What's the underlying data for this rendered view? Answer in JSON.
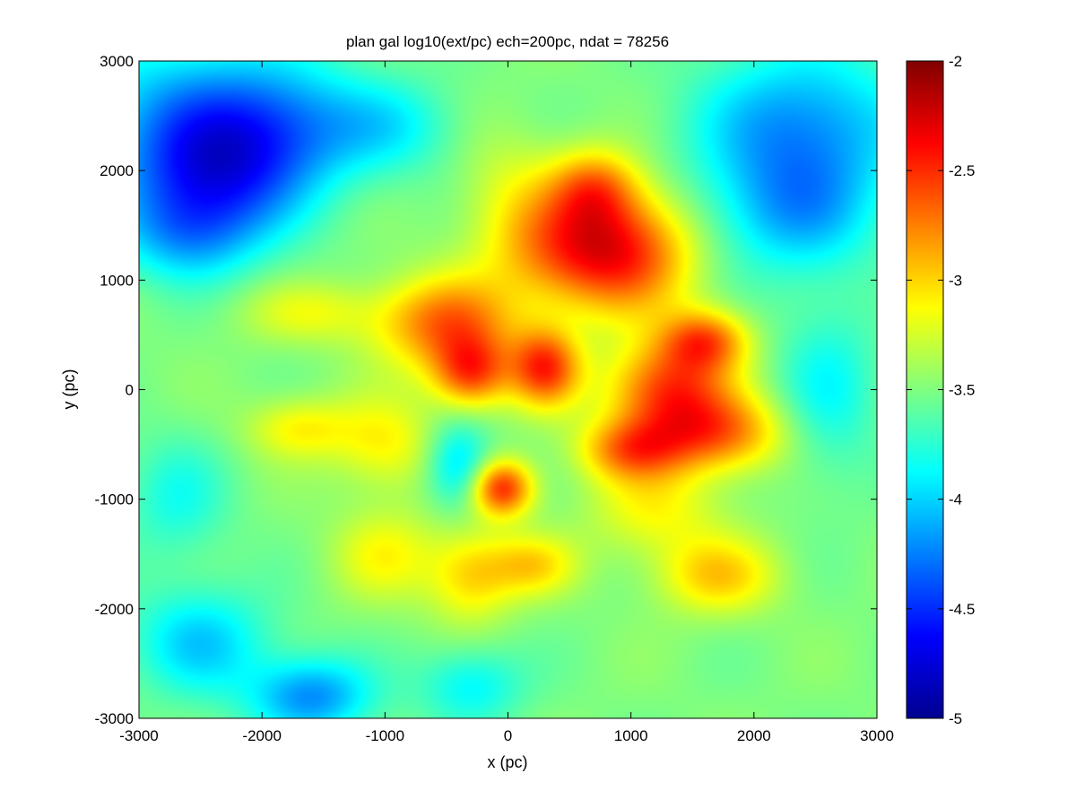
{
  "chart_data": {
    "type": "heatmap",
    "title": "plan gal log10(ext/pc) ech=200pc, ndat = 78256",
    "xlabel": "x (pc)",
    "ylabel": "y (pc)",
    "xlim": [
      -3000,
      3000
    ],
    "ylim": [
      -3000,
      3000
    ],
    "x_ticks": [
      "-3000",
      "-2000",
      "-1000",
      "0",
      "1000",
      "2000",
      "3000"
    ],
    "y_ticks": [
      "3000",
      "2000",
      "1000",
      "0",
      "-1000",
      "-2000",
      "-3000"
    ],
    "colorbar": {
      "range": [
        -5,
        -2
      ],
      "colormap": "jet",
      "ticks": [
        "-2",
        "-2.5",
        "-3",
        "-3.5",
        "-4",
        "-4.5",
        "-5"
      ]
    },
    "grid": false,
    "background_value": -3.5,
    "features": [
      {
        "x": -2600,
        "y": 2500,
        "value": -4.1,
        "sx": 700,
        "sy": 500
      },
      {
        "x": -2400,
        "y": 1900,
        "value": -4.25,
        "sx": 500,
        "sy": 400
      },
      {
        "x": -2600,
        "y": 1400,
        "value": -4.0,
        "sx": 400,
        "sy": 300
      },
      {
        "x": -1800,
        "y": 2400,
        "value": -4.0,
        "sx": 500,
        "sy": 400
      },
      {
        "x": 2400,
        "y": 2400,
        "value": -4.2,
        "sx": 600,
        "sy": 500
      },
      {
        "x": 2300,
        "y": 1600,
        "value": -4.0,
        "sx": 500,
        "sy": 400
      },
      {
        "x": -2500,
        "y": -2300,
        "value": -4.0,
        "sx": 400,
        "sy": 350
      },
      {
        "x": -1600,
        "y": -2800,
        "value": -4.2,
        "sx": 350,
        "sy": 250
      },
      {
        "x": -300,
        "y": -2700,
        "value": -3.9,
        "sx": 300,
        "sy": 250
      },
      {
        "x": -400,
        "y": -700,
        "value": -4.05,
        "sx": 180,
        "sy": 280
      },
      {
        "x": 2600,
        "y": 0,
        "value": -3.85,
        "sx": 300,
        "sy": 600
      },
      {
        "x": -2700,
        "y": -1000,
        "value": -3.8,
        "sx": 300,
        "sy": 400
      },
      {
        "x": -900,
        "y": 2400,
        "value": -3.8,
        "sx": 400,
        "sy": 300
      },
      {
        "x": 500,
        "y": 1300,
        "value": -2.75,
        "sx": 450,
        "sy": 380
      },
      {
        "x": 1000,
        "y": 1250,
        "value": -2.8,
        "sx": 400,
        "sy": 400
      },
      {
        "x": 700,
        "y": 1850,
        "value": -2.9,
        "sx": 250,
        "sy": 250
      },
      {
        "x": -500,
        "y": 600,
        "value": -2.7,
        "sx": 400,
        "sy": 300
      },
      {
        "x": -300,
        "y": 150,
        "value": -2.65,
        "sx": 220,
        "sy": 230
      },
      {
        "x": 300,
        "y": 200,
        "value": -2.55,
        "sx": 200,
        "sy": 250
      },
      {
        "x": 1300,
        "y": 0,
        "value": -2.6,
        "sx": 350,
        "sy": 300
      },
      {
        "x": 1600,
        "y": 450,
        "value": -2.7,
        "sx": 250,
        "sy": 200
      },
      {
        "x": 1700,
        "y": -400,
        "value": -2.75,
        "sx": 400,
        "sy": 250
      },
      {
        "x": 1000,
        "y": -550,
        "value": -2.8,
        "sx": 300,
        "sy": 200
      },
      {
        "x": -50,
        "y": -900,
        "value": -2.5,
        "sx": 180,
        "sy": 180
      },
      {
        "x": 1700,
        "y": -1700,
        "value": -3.0,
        "sx": 350,
        "sy": 250
      },
      {
        "x": -300,
        "y": -1700,
        "value": -3.0,
        "sx": 250,
        "sy": 300
      },
      {
        "x": 200,
        "y": -1600,
        "value": -3.05,
        "sx": 250,
        "sy": 200
      },
      {
        "x": -1700,
        "y": -350,
        "value": -3.1,
        "sx": 300,
        "sy": 200
      },
      {
        "x": -1000,
        "y": -500,
        "value": -3.1,
        "sx": 300,
        "sy": 300
      },
      {
        "x": -1600,
        "y": 700,
        "value": -3.2,
        "sx": 400,
        "sy": 200
      },
      {
        "x": 0,
        "y": 1900,
        "value": -3.3,
        "sx": 300,
        "sy": 400
      },
      {
        "x": -1000,
        "y": -1500,
        "value": -3.15,
        "sx": 300,
        "sy": 300
      },
      {
        "x": 1200,
        "y": -1100,
        "value": -3.15,
        "sx": 400,
        "sy": 300
      }
    ]
  }
}
